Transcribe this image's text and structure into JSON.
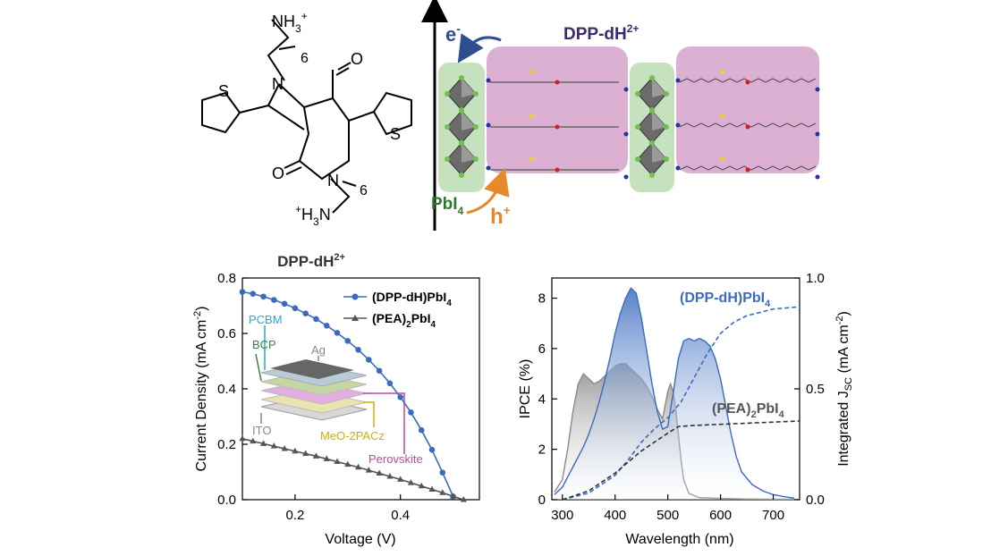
{
  "molecule": {
    "amine_top": "NH",
    "amine_top_sub": "3",
    "amine_top_sup": "+",
    "amine_bottom_sup": "+",
    "amine_bottom": "H",
    "amine_bottom_sub": "3",
    "amine_bottom_n": "N",
    "chain_count": "6",
    "n_label": "N",
    "o_label": "O",
    "s_label": "S"
  },
  "crystal": {
    "electron_label": "e",
    "electron_sup": "-",
    "hole_label": "h",
    "hole_sup": "+",
    "cation_label": "DPP-dH",
    "cation_sup": "2+",
    "inorganic_label": "PbI",
    "inorganic_sub": "4",
    "colors": {
      "inorganic_bg": "#c6e1bd",
      "organic_bg": "#dbb0d2",
      "electron": "#2d4e8f",
      "hole": "#e58a2b",
      "cation_text": "#3c2a6e",
      "inorganic_text": "#2a7a2a"
    }
  },
  "chart_data": [
    {
      "type": "line",
      "title": "DPP-dH",
      "title_sup": "2+",
      "xlabel": "Voltage (V)",
      "ylabel": "Current Density (mA cm",
      "ylabel_sup": "-2",
      "ylabel_end": ")",
      "xlim": [
        0.1,
        0.55
      ],
      "ylim": [
        0.0,
        0.8
      ],
      "xticks": [
        "0.2",
        "0.4"
      ],
      "xtick_values": [
        0.2,
        0.4
      ],
      "yticks": [
        "0.0",
        "0.2",
        "0.4",
        "0.6",
        "0.8"
      ],
      "ytick_values": [
        0.0,
        0.2,
        0.4,
        0.6,
        0.8
      ],
      "legend_position": "top-right",
      "series": [
        {
          "name": "(DPP-dH)PbI",
          "name_sub": "4",
          "name_end": "",
          "color": "#3a6bbf",
          "marker": "circle",
          "x": [
            0.1,
            0.12,
            0.14,
            0.16,
            0.18,
            0.2,
            0.22,
            0.24,
            0.26,
            0.28,
            0.3,
            0.32,
            0.34,
            0.36,
            0.38,
            0.4,
            0.42,
            0.44,
            0.46,
            0.48,
            0.5
          ],
          "y": [
            0.75,
            0.743,
            0.733,
            0.721,
            0.707,
            0.691,
            0.672,
            0.652,
            0.628,
            0.602,
            0.573,
            0.541,
            0.505,
            0.465,
            0.42,
            0.37,
            0.315,
            0.251,
            0.18,
            0.098,
            0.012
          ]
        },
        {
          "name": "(PEA)",
          "name_sub": "2",
          "name_end": "PbI",
          "name_sub2": "4",
          "color": "#555555",
          "marker": "triangle",
          "x": [
            0.1,
            0.12,
            0.14,
            0.16,
            0.18,
            0.2,
            0.22,
            0.24,
            0.26,
            0.28,
            0.3,
            0.32,
            0.34,
            0.36,
            0.38,
            0.4,
            0.42,
            0.44,
            0.46,
            0.48,
            0.5,
            0.52
          ],
          "y": [
            0.22,
            0.211,
            0.202,
            0.193,
            0.184,
            0.175,
            0.166,
            0.157,
            0.147,
            0.137,
            0.127,
            0.117,
            0.106,
            0.095,
            0.084,
            0.073,
            0.061,
            0.049,
            0.037,
            0.025,
            0.012,
            0.0
          ]
        }
      ],
      "inset": {
        "layers": [
          "Ag",
          "PCBM",
          "BCP",
          "Perovskite",
          "MeO-2PACz",
          "ITO"
        ],
        "colors": {
          "Ag": "#888888",
          "PCBM": "#29a8d8",
          "BCP": "#2e8b3a",
          "Perovskite": "#c0489e",
          "MeO-2PACz": "#c8b400",
          "ITO": "#888888"
        }
      }
    },
    {
      "type": "area",
      "xlabel": "Wavelength (nm)",
      "ylabel": "IPCE (%)",
      "y2label": "Integrated J",
      "y2label_sub": "SC",
      "y2label_end": " (mA cm",
      "y2label_sup": "-2",
      "y2label_close": ")",
      "xlim": [
        280,
        750
      ],
      "ylim": [
        0,
        8.8
      ],
      "y2lim": [
        0,
        1.0
      ],
      "xticks": [
        "300",
        "400",
        "500",
        "600",
        "700"
      ],
      "xtick_values": [
        300,
        400,
        500,
        600,
        700
      ],
      "yticks": [
        "0",
        "2",
        "4",
        "6",
        "8"
      ],
      "ytick_values": [
        0,
        2,
        4,
        6,
        8
      ],
      "y2ticks": [
        "0.0",
        "0.5",
        "1.0"
      ],
      "y2tick_values": [
        0.0,
        0.5,
        1.0
      ],
      "series": [
        {
          "name": "(DPP-dH)PbI",
          "name_sub": "4",
          "name_end": "",
          "color": "#3a6bbf",
          "axis": "left",
          "x": [
            285,
            300,
            310,
            320,
            330,
            340,
            350,
            360,
            370,
            380,
            390,
            400,
            410,
            420,
            430,
            440,
            450,
            460,
            470,
            480,
            490,
            500,
            510,
            520,
            530,
            540,
            550,
            560,
            570,
            580,
            590,
            600,
            610,
            620,
            630,
            640,
            660,
            680,
            700,
            720,
            740
          ],
          "y": [
            0.2,
            0.5,
            0.9,
            1.3,
            1.7,
            2.1,
            2.6,
            3.2,
            3.9,
            4.7,
            5.6,
            6.6,
            7.4,
            8.0,
            8.4,
            8.2,
            7.2,
            5.9,
            4.6,
            3.5,
            2.8,
            2.9,
            4.2,
            5.6,
            6.3,
            6.4,
            6.3,
            6.4,
            6.3,
            6.1,
            5.6,
            4.8,
            3.7,
            2.6,
            1.7,
            1.1,
            0.6,
            0.35,
            0.2,
            0.12,
            0.06
          ]
        },
        {
          "name": "(PEA)",
          "name_sub": "2",
          "name_end": "PbI",
          "name_sub2": "4",
          "color": "#8a8a8a",
          "axis": "left",
          "x": [
            285,
            300,
            310,
            320,
            330,
            340,
            350,
            360,
            370,
            380,
            390,
            400,
            410,
            420,
            430,
            440,
            450,
            460,
            470,
            480,
            490,
            500,
            505,
            510,
            515,
            520,
            525,
            530,
            540,
            560,
            600,
            650,
            700,
            740
          ],
          "y": [
            0.3,
            0.8,
            2.0,
            3.5,
            4.6,
            5.0,
            4.8,
            4.6,
            4.7,
            4.9,
            5.1,
            5.3,
            5.4,
            5.4,
            5.2,
            5.0,
            4.8,
            4.5,
            4.1,
            3.6,
            3.2,
            4.3,
            4.6,
            4.3,
            3.6,
            2.6,
            1.6,
            0.8,
            0.25,
            0.08,
            0.05,
            0.03,
            0.02,
            0.02
          ]
        },
        {
          "name": "Integrated (DPP-dH)PbI4",
          "color": "#3a6bbf",
          "axis": "right",
          "style": "dashed",
          "x": [
            300,
            350,
            400,
            425,
            450,
            475,
            500,
            525,
            550,
            575,
            600,
            625,
            650,
            700,
            750
          ],
          "y": [
            0.0,
            0.03,
            0.11,
            0.18,
            0.26,
            0.32,
            0.37,
            0.44,
            0.55,
            0.66,
            0.75,
            0.8,
            0.83,
            0.86,
            0.87
          ]
        },
        {
          "name": "Integrated (PEA)2PbI4",
          "color": "#333333",
          "axis": "right",
          "style": "dashed",
          "x": [
            300,
            350,
            400,
            425,
            450,
            475,
            500,
            520,
            550,
            600,
            650,
            700,
            750
          ],
          "y": [
            0.0,
            0.04,
            0.12,
            0.17,
            0.22,
            0.26,
            0.3,
            0.33,
            0.335,
            0.34,
            0.345,
            0.35,
            0.355
          ]
        }
      ]
    }
  ]
}
